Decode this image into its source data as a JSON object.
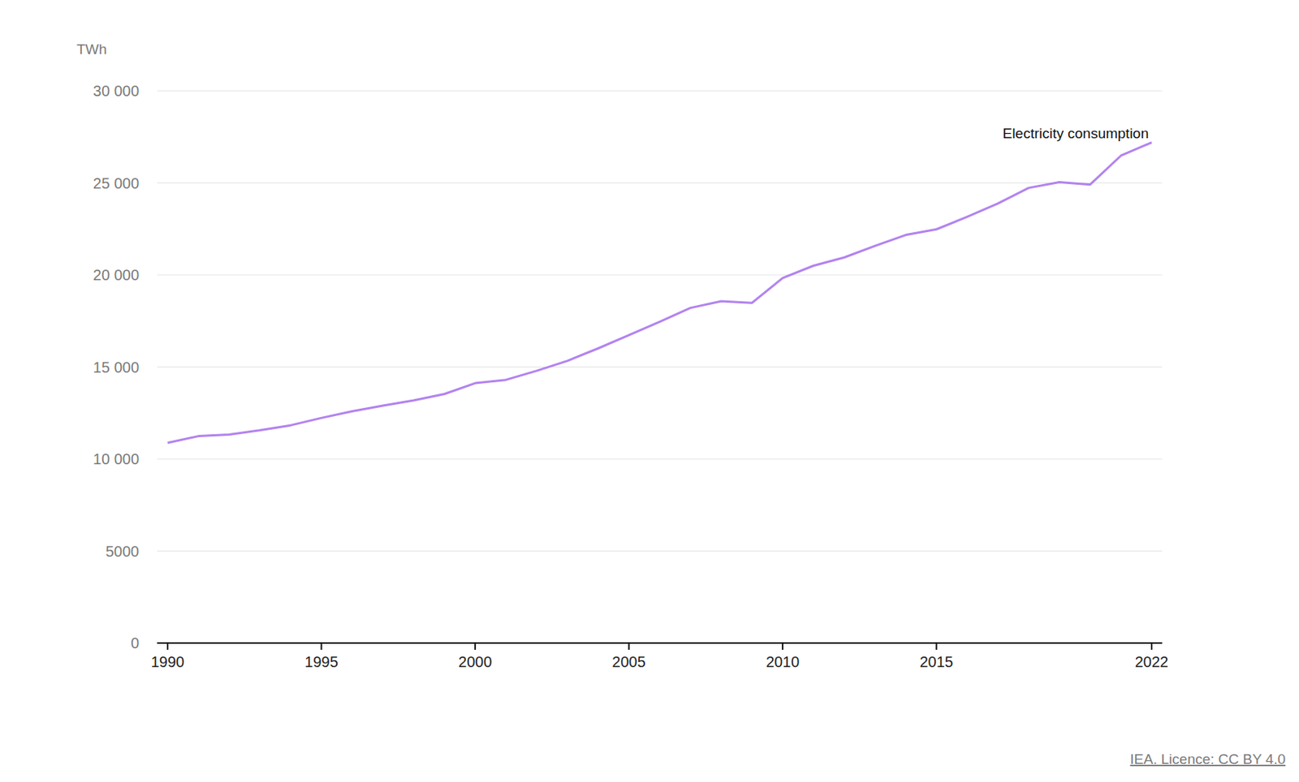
{
  "chart_data": {
    "type": "line",
    "y_label": "TWh",
    "source": "IEA. Licence: CC BY 4.0",
    "x": [
      1990,
      1991,
      1992,
      1993,
      1994,
      1995,
      1996,
      1997,
      1998,
      1999,
      2000,
      2001,
      2002,
      2003,
      2004,
      2005,
      2006,
      2007,
      2008,
      2009,
      2010,
      2011,
      2012,
      2013,
      2014,
      2015,
      2016,
      2017,
      2018,
      2019,
      2020,
      2021,
      2022
    ],
    "series": [
      {
        "name": "Electricity consumption",
        "color": "#b383f0",
        "values": [
          10880,
          11240,
          11330,
          11560,
          11830,
          12230,
          12590,
          12900,
          13180,
          13530,
          14120,
          14300,
          14790,
          15330,
          16010,
          16730,
          17450,
          18210,
          18570,
          18480,
          19830,
          20500,
          20950,
          21580,
          22170,
          22480,
          23160,
          23880,
          24730,
          25040,
          24910,
          26480,
          27200
        ]
      }
    ],
    "xlim": [
      1990,
      2022
    ],
    "xticks": [
      1990,
      1995,
      2000,
      2005,
      2010,
      2015,
      2022
    ],
    "ylim": [
      0,
      30000
    ],
    "yticks": [
      0,
      5000,
      {
        "value": 10000,
        "label": "10 000"
      },
      {
        "value": 15000,
        "label": "15 000"
      },
      {
        "value": 20000,
        "label": "20 000"
      },
      {
        "value": 25000,
        "label": "25 000"
      },
      {
        "value": 30000,
        "label": "30 000"
      }
    ],
    "grid": true
  }
}
